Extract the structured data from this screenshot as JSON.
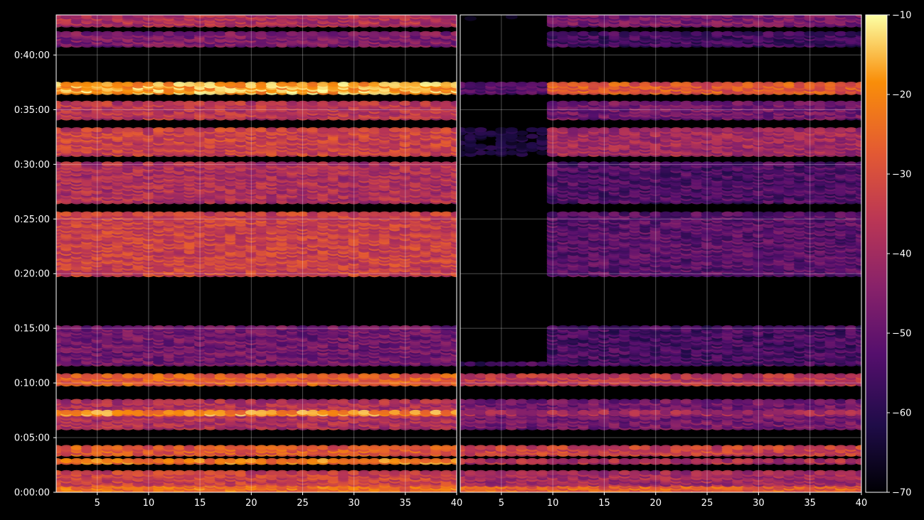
{
  "chart_data": {
    "type": "heatmap",
    "title": "",
    "xlabel": "",
    "ylabel": "",
    "colormap": "inferno",
    "grid": true,
    "background": "#000000",
    "panels": [
      {
        "name": "",
        "xlim": [
          1,
          40
        ],
        "xticks": [
          5,
          10,
          15,
          20,
          25,
          30,
          35,
          40
        ]
      },
      {
        "name": "",
        "xlim": [
          1,
          40
        ],
        "xticks": [
          5,
          10,
          15,
          20,
          25,
          30,
          35,
          40
        ]
      }
    ],
    "y_axis": {
      "ylim_seconds": [
        0,
        2620
      ],
      "ticks": [
        {
          "seconds": 0,
          "label": "0:00:00"
        },
        {
          "seconds": 300,
          "label": "0:05:00"
        },
        {
          "seconds": 600,
          "label": "0:10:00"
        },
        {
          "seconds": 900,
          "label": "0:15:00"
        },
        {
          "seconds": 1200,
          "label": "0:20:00"
        },
        {
          "seconds": 1500,
          "label": "0:25:00"
        },
        {
          "seconds": 1800,
          "label": "0:30:00"
        },
        {
          "seconds": 2100,
          "label": "0:35:00"
        },
        {
          "seconds": 2400,
          "label": "0:40:00"
        }
      ]
    },
    "colorbar": {
      "range": [
        -70,
        -10
      ],
      "ticks": [
        {
          "value": -10,
          "label": "−10"
        },
        {
          "value": -20,
          "label": "−20"
        },
        {
          "value": -30,
          "label": "−30"
        },
        {
          "value": -40,
          "label": "−40"
        },
        {
          "value": -50,
          "label": "−50"
        },
        {
          "value": -60,
          "label": "−60"
        },
        {
          "value": -70,
          "label": "−70"
        }
      ]
    },
    "bands": [
      {
        "t0": 0,
        "t1": 40,
        "left": -24,
        "right": -27
      },
      {
        "t0": 40,
        "t1": 110,
        "left": -33,
        "right": -40
      },
      {
        "t0": 160,
        "t1": 175,
        "left": -22,
        "right": -38
      },
      {
        "t0": 205,
        "t1": 250,
        "left": -28,
        "right": -33
      },
      {
        "t0": 350,
        "t1": 500,
        "left": -38,
        "right": -48
      },
      {
        "t0": 425,
        "t1": 440,
        "left": -20,
        "right": -40
      },
      {
        "t0": 590,
        "t1": 640,
        "left": -27,
        "right": -36
      },
      {
        "t0": 700,
        "t1": 900,
        "left": -48,
        "right": -55
      },
      {
        "t0": 1190,
        "t1": 1530,
        "left": -33,
        "right": -52
      },
      {
        "t0": 1590,
        "t1": 1800,
        "left": -38,
        "right": -54
      },
      {
        "t0": 1850,
        "t1": 1990,
        "left": -33,
        "right": -40
      },
      {
        "t0": 2050,
        "t1": 2140,
        "left": -36,
        "right": -48
      },
      {
        "t0": 2190,
        "t1": 2240,
        "left": -17,
        "right": -28
      },
      {
        "t0": 2450,
        "t1": 2520,
        "left": -46,
        "right": -56
      },
      {
        "t0": 2560,
        "t1": 2620,
        "left": -38,
        "right": -47
      }
    ]
  }
}
